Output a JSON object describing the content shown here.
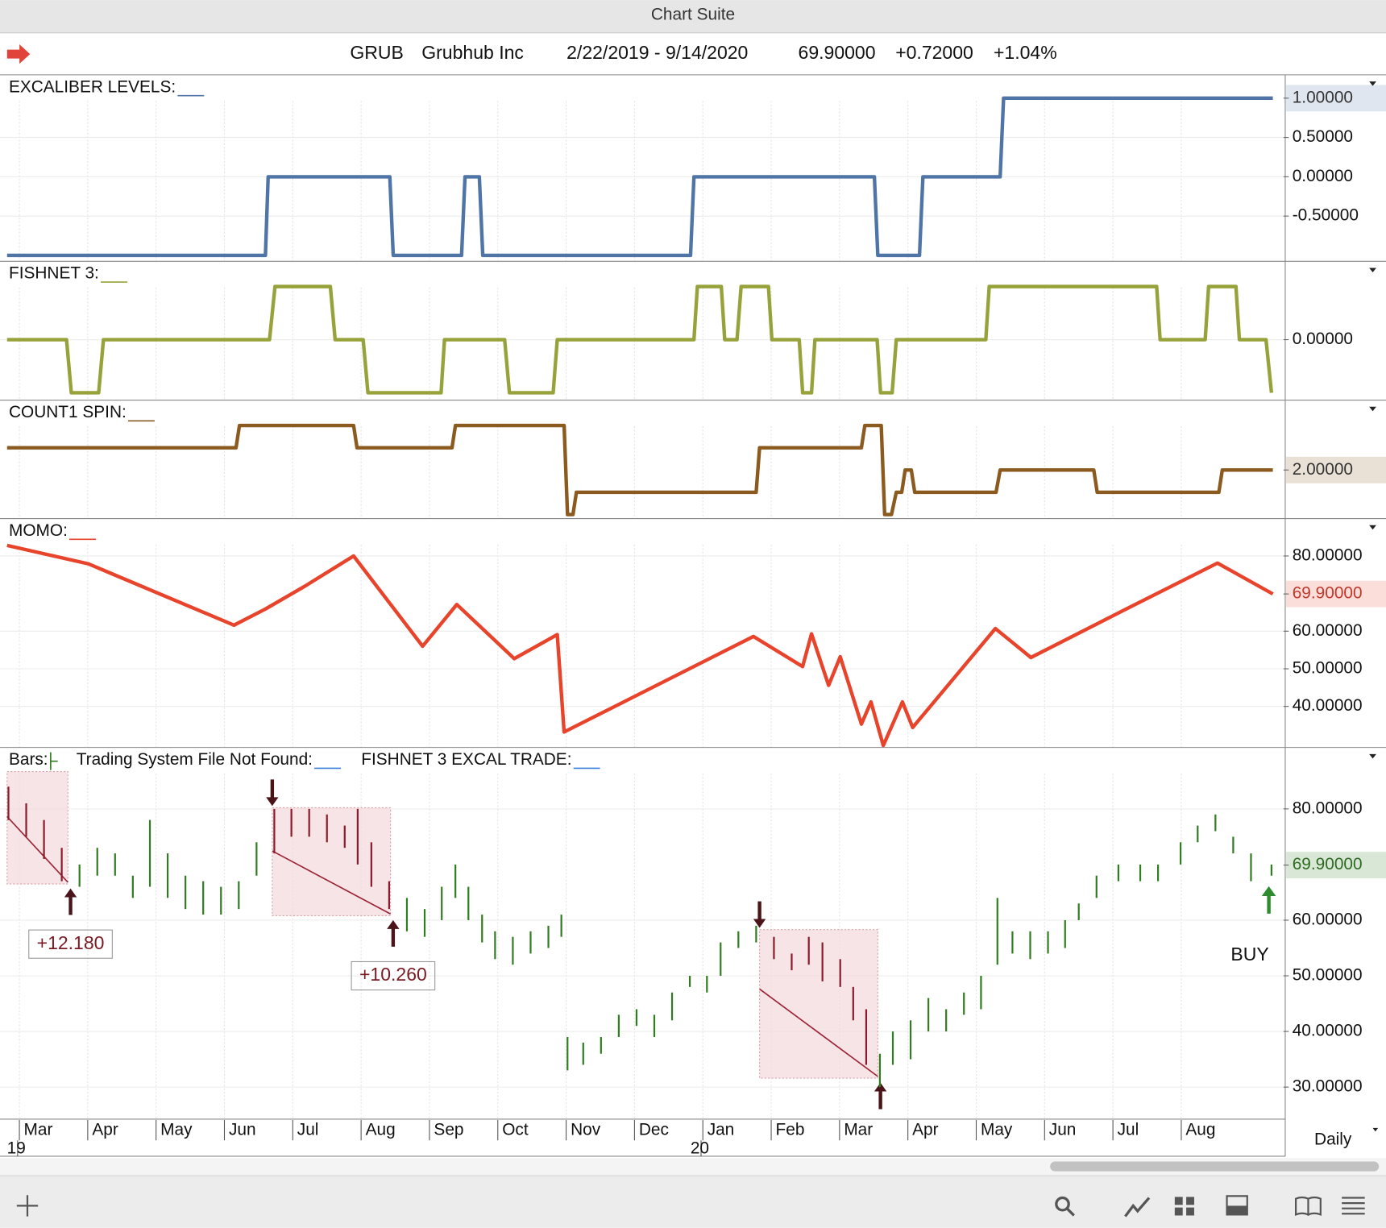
{
  "window_title": "Chart Suite",
  "header": {
    "symbol": "GRUB",
    "name": "Grubhub Inc",
    "range": "2/22/2019 - 9/14/2020",
    "last": "69.90000",
    "change": "+0.72000",
    "change_pct": "+1.04%"
  },
  "x_axis": {
    "xlim": [
      1.82,
      20.34
    ],
    "xticks": [
      {
        "value": 2,
        "label": "Mar"
      },
      {
        "value": 3,
        "label": "Apr"
      },
      {
        "value": 4,
        "label": "May"
      },
      {
        "value": 5,
        "label": "Jun"
      },
      {
        "value": 6,
        "label": "Jul"
      },
      {
        "value": 7,
        "label": "Aug"
      },
      {
        "value": 8,
        "label": "Sep"
      },
      {
        "value": 9,
        "label": "Oct"
      },
      {
        "value": 10,
        "label": "Nov"
      },
      {
        "value": 11,
        "label": "Dec"
      },
      {
        "value": 12,
        "label": "Jan"
      },
      {
        "value": 13,
        "label": "Feb"
      },
      {
        "value": 14,
        "label": "Mar"
      },
      {
        "value": 15,
        "label": "Apr"
      },
      {
        "value": 16,
        "label": "May"
      },
      {
        "value": 17,
        "label": "Jun"
      },
      {
        "value": 18,
        "label": "Jul"
      },
      {
        "value": 19,
        "label": "Aug"
      }
    ],
    "year_labels": [
      {
        "value": 2,
        "label": "19"
      },
      {
        "value": 12,
        "label": "20"
      }
    ],
    "period": "Daily"
  },
  "panels": [
    {
      "type": "line",
      "legend": "EXCALIBER LEVELS:",
      "color": "#4f74a6",
      "ylim": [
        -1.07,
        1.28
      ],
      "yticks": [
        {
          "value": 0.5,
          "label": "0.50000"
        },
        {
          "value": 0,
          "label": "0.00000"
        },
        {
          "value": -0.5,
          "label": "-0.50000"
        }
      ],
      "last": {
        "value": 1,
        "label": "1.00000"
      },
      "x": [
        1.82,
        5.6,
        5.64,
        7.42,
        7.47,
        8.47,
        8.52,
        8.73,
        8.78,
        11.82,
        11.87,
        14.51,
        14.56,
        15.17,
        15.22,
        16.35,
        16.4,
        20.34
      ],
      "values": [
        -1,
        -1,
        0,
        0,
        -1,
        -1,
        0,
        0,
        -1,
        -1,
        0,
        0,
        -1,
        -1,
        0,
        0,
        1,
        1
      ]
    },
    {
      "type": "line",
      "legend": "FISHNET 3:",
      "color": "#97a23a",
      "ylim": [
        -1.13,
        1.45
      ],
      "yticks": [
        {
          "value": 0,
          "label": "0.00000"
        }
      ],
      "x": [
        1.82,
        2.69,
        2.76,
        3.16,
        3.23,
        5.66,
        5.74,
        6.55,
        6.62,
        7.03,
        7.1,
        8.17,
        8.22,
        9.1,
        9.17,
        9.81,
        9.87,
        11.87,
        11.92,
        12.27,
        12.32,
        12.5,
        12.56,
        12.96,
        13.01,
        13.41,
        13.46,
        13.59,
        13.64,
        14.55,
        14.6,
        14.77,
        14.83,
        16.14,
        16.19,
        18.64,
        18.69,
        19.35,
        19.4,
        19.8,
        19.85,
        20.24,
        20.32
      ],
      "values": [
        0,
        0,
        -1,
        -1,
        0,
        0,
        1,
        1,
        0,
        0,
        -1,
        -1,
        0,
        0,
        -1,
        -1,
        0,
        0,
        1,
        1,
        0,
        0,
        1,
        1,
        0,
        0,
        -1,
        -1,
        0,
        0,
        -1,
        -1,
        0,
        0,
        1,
        1,
        0,
        0,
        1,
        1,
        0,
        0,
        -1
      ]
    },
    {
      "type": "line",
      "legend": "COUNT1 SPIN:",
      "color": "#8b5a1e",
      "ylim": [
        -0.16,
        5.08
      ],
      "yticks": [],
      "last": {
        "value": 2,
        "label": "2.00000"
      },
      "x": [
        1.82,
        5.17,
        5.22,
        6.89,
        6.94,
        8.33,
        8.38,
        9.97,
        10.02,
        10.1,
        10.15,
        12.78,
        12.83,
        14.32,
        14.37,
        14.61,
        14.66,
        14.76,
        14.83,
        14.91,
        14.96,
        15.05,
        15.1,
        16.29,
        16.35,
        17.72,
        17.77,
        19.55,
        19.6,
        20.34
      ],
      "values": [
        3,
        3,
        4,
        4,
        3,
        3,
        4,
        4,
        0,
        0,
        1,
        1,
        3,
        3,
        4,
        4,
        0,
        0,
        1,
        1,
        2,
        2,
        1,
        1,
        2,
        2,
        1,
        1,
        2,
        2
      ]
    },
    {
      "type": "line",
      "legend": "MOMO:",
      "color": "#e8432b",
      "ylim": [
        29.2,
        89.6
      ],
      "yticks": [
        {
          "value": 80,
          "label": "80.00000"
        },
        {
          "value": 60,
          "label": "60.00000"
        },
        {
          "value": 50,
          "label": "50.00000"
        },
        {
          "value": 40,
          "label": "40.00000"
        }
      ],
      "last": {
        "value": 69.9,
        "label": "69.90000"
      },
      "x": [
        1.82,
        3.01,
        5.14,
        5.6,
        6.18,
        6.89,
        7.9,
        8.4,
        9.24,
        9.87,
        9.97,
        12.74,
        13.46,
        13.59,
        13.84,
        14.01,
        14.32,
        14.46,
        14.64,
        14.92,
        15.07,
        16.28,
        16.8,
        18.27,
        19.53,
        20.34
      ],
      "values": [
        82.8,
        77.9,
        61.6,
        65.9,
        72.0,
        80.0,
        56.0,
        67.1,
        52.7,
        59.1,
        33.2,
        58.6,
        50.6,
        59.3,
        45.6,
        53.2,
        35.3,
        41.2,
        29.6,
        41.2,
        34.4,
        60.7,
        53.0,
        66.6,
        78.1,
        69.9
      ]
    },
    {
      "type": "bars",
      "legend": [
        "Bars:",
        "Trading System File Not Found:",
        "FISHNET 3 EXCAL TRADE:"
      ],
      "color": "#2e7d1e",
      "down_color": "#8b1a2a",
      "ylim": [
        24.4,
        90.8
      ],
      "yticks": [
        {
          "value": 80,
          "label": "80.00000"
        },
        {
          "value": 60,
          "label": "60.00000"
        },
        {
          "value": 50,
          "label": "50.00000"
        },
        {
          "value": 40,
          "label": "40.00000"
        },
        {
          "value": 30,
          "label": "30.00000"
        }
      ],
      "last": {
        "value": 69.9,
        "label": "69.90000"
      },
      "x": [
        1.84,
        2.1,
        2.36,
        2.62,
        2.88,
        3.14,
        3.4,
        3.66,
        3.91,
        4.17,
        4.43,
        4.69,
        4.95,
        5.21,
        5.47,
        5.73,
        5.98,
        6.24,
        6.5,
        6.76,
        6.95,
        7.15,
        7.41,
        7.67,
        7.93,
        8.18,
        8.38,
        8.57,
        8.77,
        8.96,
        9.22,
        9.48,
        9.74,
        9.93,
        10.02,
        10.25,
        10.51,
        10.77,
        11.03,
        11.29,
        11.55,
        11.81,
        12.06,
        12.26,
        12.52,
        12.78,
        13.04,
        13.3,
        13.55,
        13.75,
        14.01,
        14.2,
        14.39,
        14.59,
        14.78,
        15.04,
        15.3,
        15.56,
        15.82,
        16.07,
        16.31,
        16.53,
        16.79,
        17.05,
        17.3,
        17.5,
        17.76,
        18.08,
        18.4,
        18.66,
        18.99,
        19.24,
        19.5,
        19.76,
        20.02,
        20.32
      ],
      "low": [
        78,
        75,
        71,
        67,
        66,
        68,
        68,
        64,
        66,
        64,
        62,
        61,
        61,
        62,
        68,
        72,
        75,
        75,
        74,
        73,
        70,
        66,
        62,
        58,
        57,
        60,
        64,
        60,
        56,
        53,
        52,
        54,
        55,
        57,
        33,
        34,
        36,
        39,
        41,
        39,
        42,
        48,
        47,
        50,
        55,
        56,
        53,
        51,
        52,
        49,
        48,
        42,
        34,
        30,
        34,
        35,
        40,
        40,
        43,
        44,
        52,
        54,
        53,
        54,
        55,
        60,
        64,
        67,
        67,
        67,
        70,
        74,
        76,
        72,
        67,
        68
      ],
      "high": [
        84,
        81,
        78,
        73,
        70,
        73,
        72,
        68,
        78,
        72,
        68,
        67,
        66,
        67,
        74,
        80,
        80,
        80,
        79,
        77,
        80,
        74,
        67,
        64,
        62,
        66,
        70,
        66,
        61,
        58,
        57,
        58,
        59,
        61,
        39,
        38,
        39,
        43,
        44,
        43,
        47,
        50,
        50,
        56,
        58,
        59,
        57,
        54,
        57,
        56,
        53,
        48,
        44,
        36,
        40,
        42,
        46,
        44,
        47,
        50,
        64,
        58,
        58,
        58,
        60,
        63,
        68,
        70,
        70,
        70,
        74,
        77,
        79,
        75,
        72,
        70
      ],
      "trades": [
        {
          "x": [
            1.82,
            2.71
          ],
          "low": 66.5,
          "high": 86.7,
          "label": "+12.180"
        },
        {
          "x": [
            5.7,
            7.43
          ],
          "low": 60.8,
          "high": 80.2,
          "label": "+10.260"
        },
        {
          "x": [
            12.83,
            14.56
          ],
          "low": 31.6,
          "high": 58.3
        }
      ],
      "signal": "BUY"
    }
  ]
}
